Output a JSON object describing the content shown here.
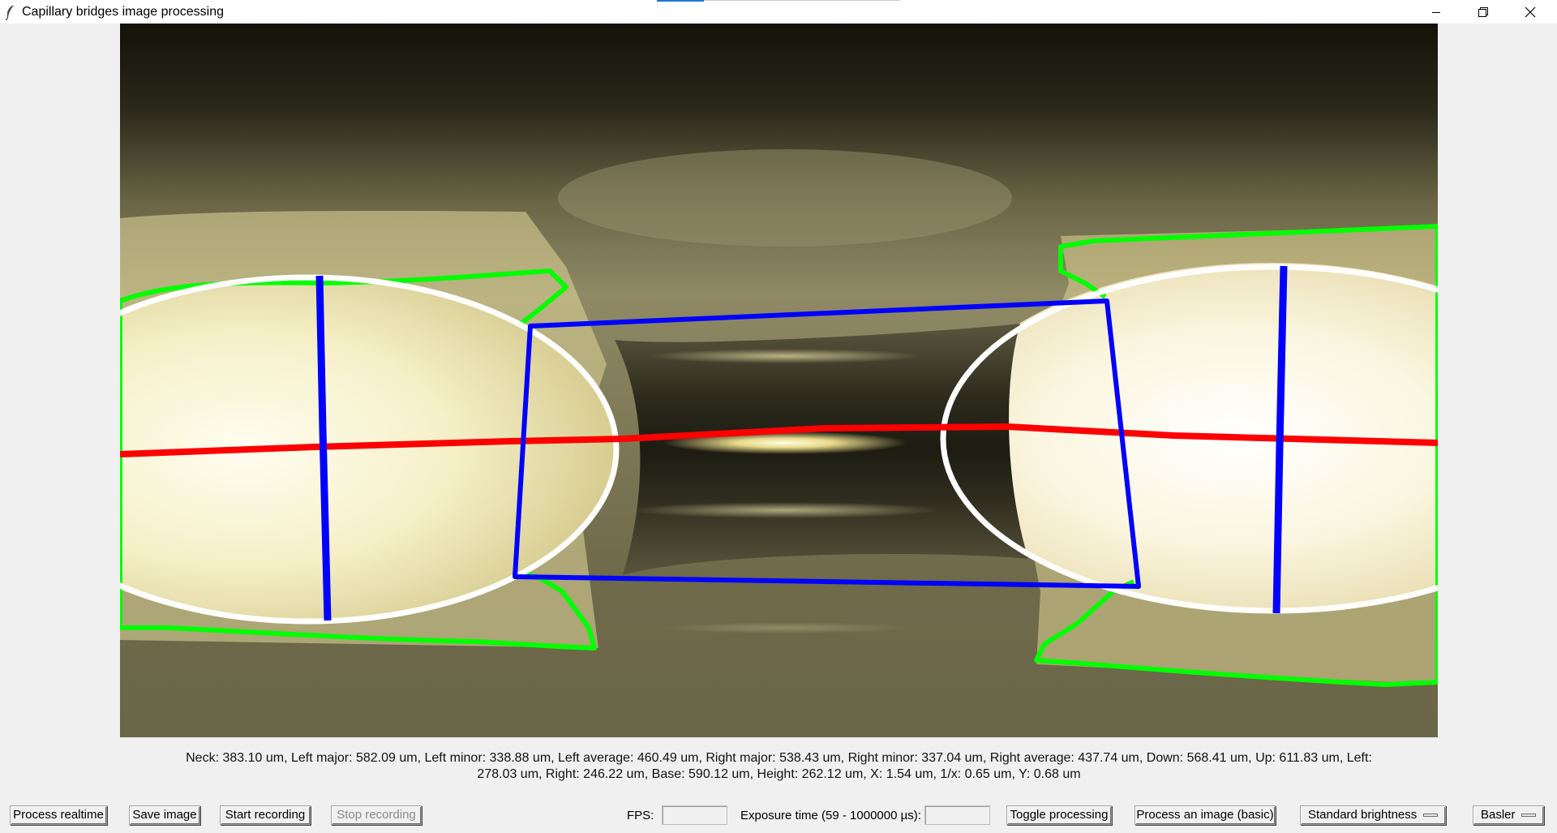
{
  "window": {
    "title": "Capillary bridges image processing",
    "icon": "feather-icon",
    "controls": [
      "minimize-icon",
      "restore-icon",
      "close-icon"
    ]
  },
  "measurements": {
    "line1": "Neck: 383.10 um, Left major: 582.09 um, Left minor: 338.88 um, Left average: 460.49 um, Right major: 538.43 um, Right minor: 337.04 um, Right average: 437.74 um, Down: 568.41 um, Up: 611.83 um, Left:",
    "line2": "278.03 um, Right: 246.22 um, Base: 590.12 um, Height: 262.12 um, X: 1.54 um, 1/x: 0.65 um, Y: 0.68 um"
  },
  "toolbar": {
    "process_realtime": "Process realtime",
    "save_image": "Save image",
    "start_recording": "Start recording",
    "stop_recording": "Stop recording",
    "fps_label": "FPS:",
    "fps_value": "",
    "exposure_label": "Exposure time (59 - 1000000 µs):",
    "exposure_value": "",
    "toggle_processing": "Toggle processing",
    "process_image_basic": "Process an image (basic)",
    "brightness_selected": "Standard brightness",
    "camera_selected": "Basler"
  },
  "overlay_colors": {
    "contour": "#00ff00",
    "ellipse": "#ffffff",
    "axis_major": "#ff0000",
    "axis_minor": "#0000ff",
    "bridge_box": "#0000ff"
  }
}
